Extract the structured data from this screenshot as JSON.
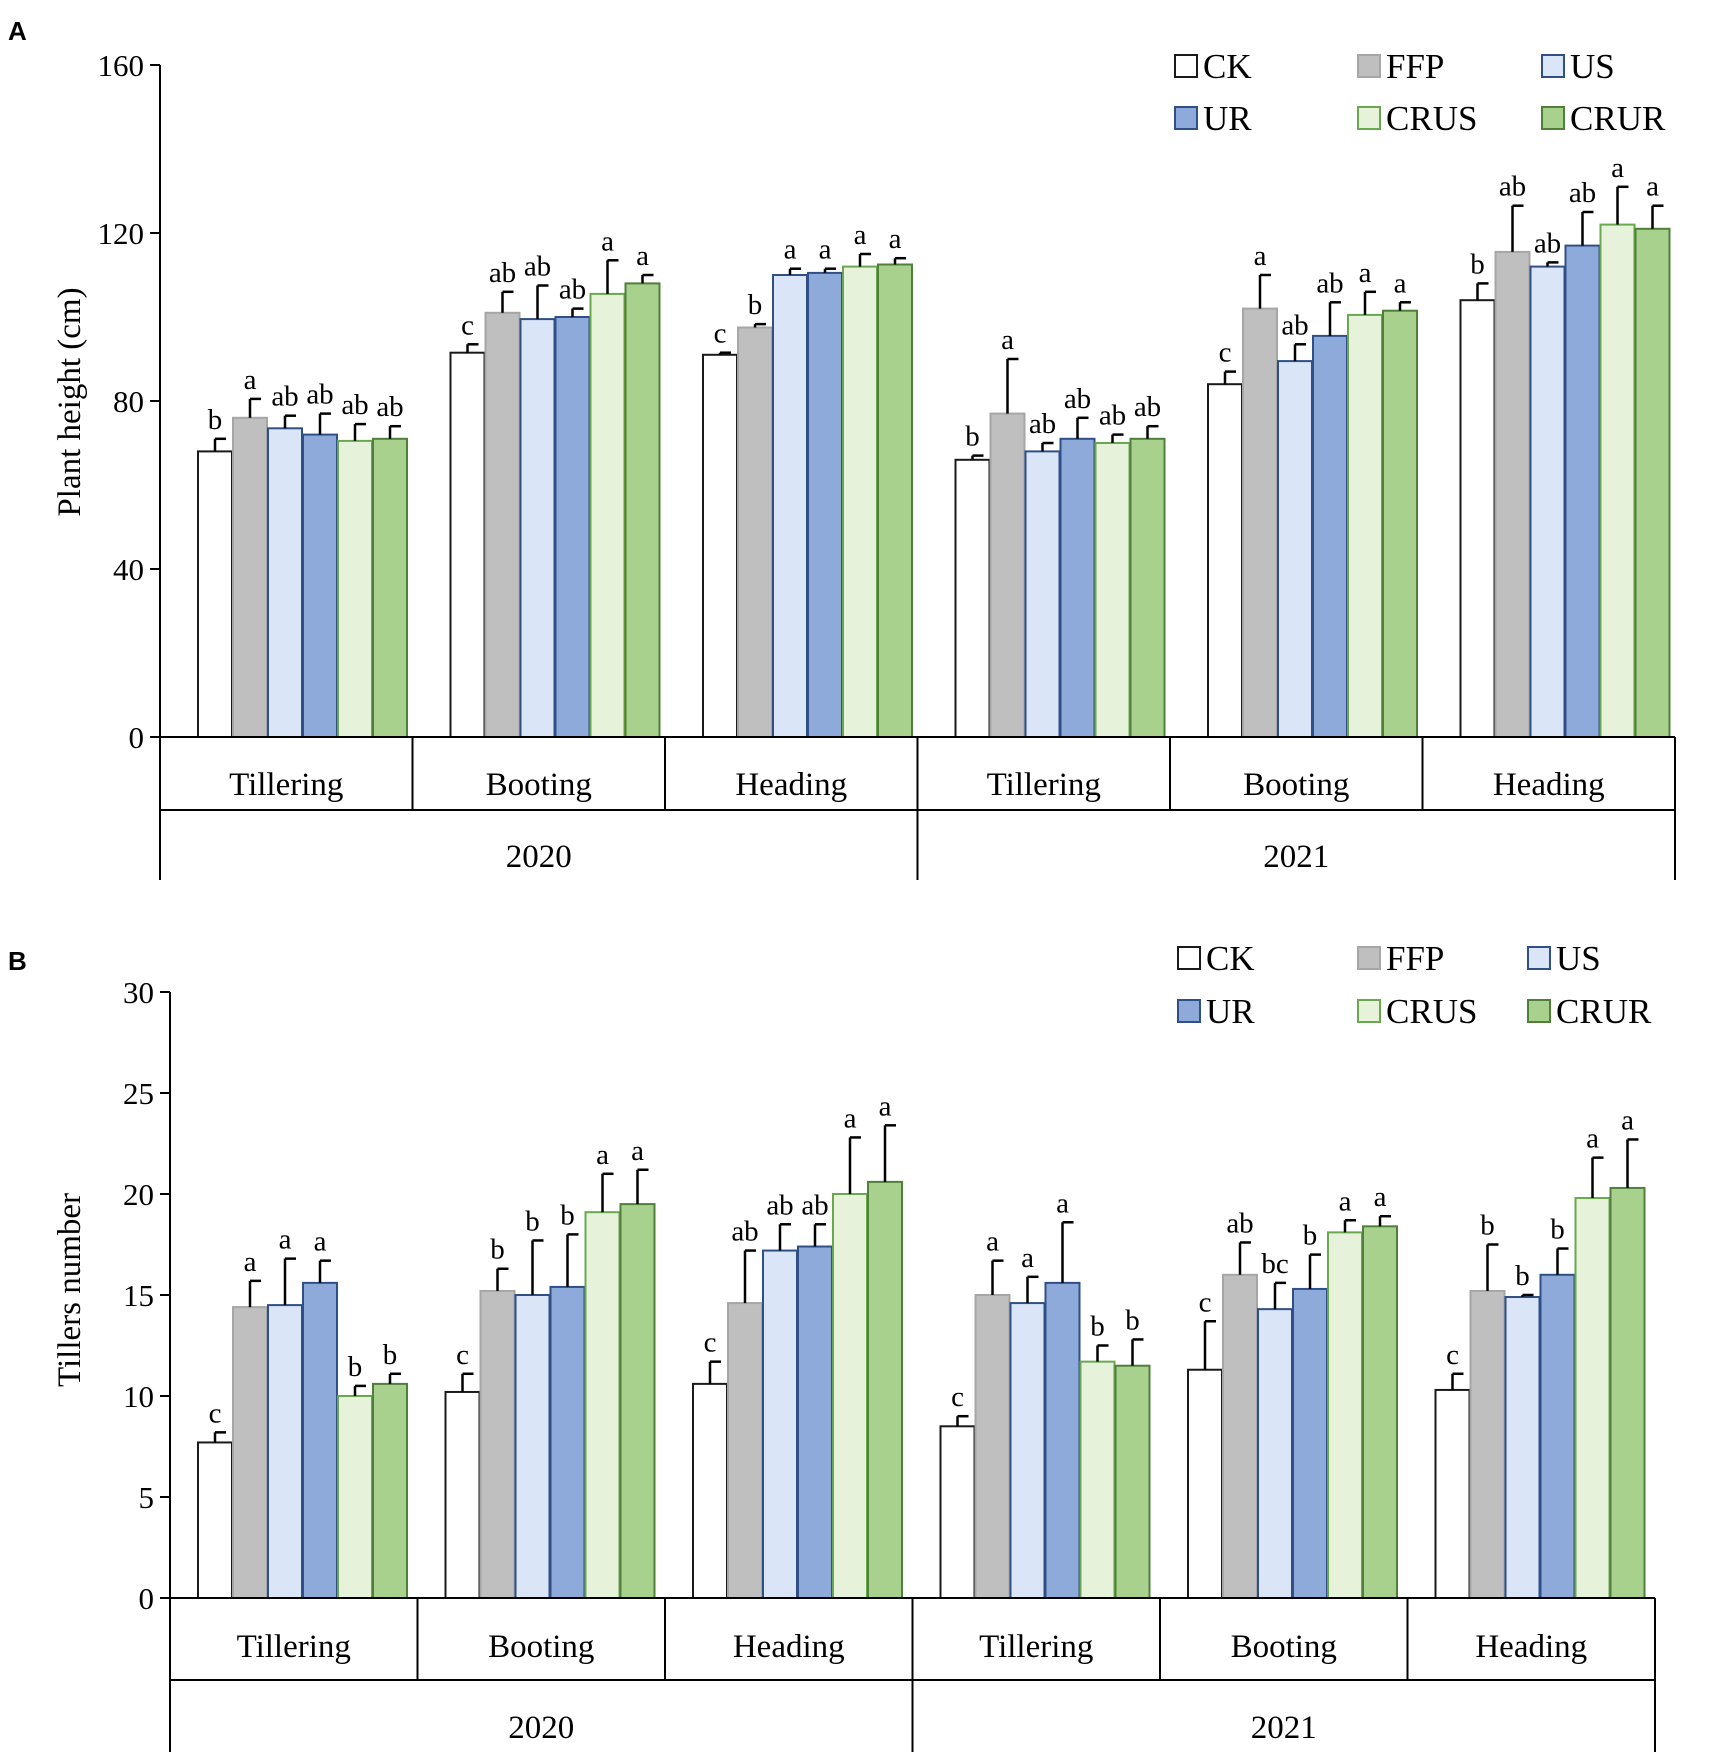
{
  "treatments": [
    "CK",
    "FFP",
    "US",
    "UR",
    "CRUS",
    "CRUR"
  ],
  "legend_order": [
    "CK",
    "FFP",
    "US",
    "UR",
    "CRUS",
    "CRUR"
  ],
  "colors": {
    "CK": {
      "fill": "#ffffff",
      "stroke": "#1a1a1a"
    },
    "FFP": {
      "fill": "#bfbfbf",
      "stroke": "#a6a6a6"
    },
    "US": {
      "fill": "#dae6f7",
      "stroke": "#2f4f86"
    },
    "UR": {
      "fill": "#8eaadb",
      "stroke": "#2f4f86"
    },
    "CRUS": {
      "fill": "#e6f2d9",
      "stroke": "#6aa84f"
    },
    "CRUR": {
      "fill": "#a9d18e",
      "stroke": "#4f7f3a"
    }
  },
  "chart_data": [
    {
      "panel": "A",
      "type": "bar",
      "ylabel": "Plant height (cm)",
      "xlabel": "",
      "ylim": [
        0,
        160
      ],
      "yticks": [
        0,
        40,
        80,
        120,
        160
      ],
      "legend_position": "top-right",
      "stages": [
        "Tillering",
        "Booting",
        "Heading",
        "Tillering",
        "Booting",
        "Heading"
      ],
      "years": [
        "2020",
        "2021"
      ],
      "series": [
        {
          "name": "CK",
          "values": [
            68,
            91.5,
            91,
            66,
            84,
            104
          ],
          "errors": [
            3,
            2,
            0.5,
            1,
            3,
            4
          ],
          "letters": [
            "b",
            "c",
            "c",
            "b",
            "c",
            "b"
          ]
        },
        {
          "name": "FFP",
          "values": [
            76,
            101,
            97.5,
            77,
            102,
            115.5
          ],
          "errors": [
            4.5,
            5,
            0.8,
            13,
            8,
            11
          ],
          "letters": [
            "a",
            "ab",
            "b",
            "a",
            "a",
            "ab"
          ]
        },
        {
          "name": "US",
          "values": [
            73.5,
            99.5,
            110,
            68,
            89.5,
            112
          ],
          "errors": [
            3,
            8,
            1.5,
            2,
            4,
            1
          ],
          "letters": [
            "ab",
            "ab",
            "a",
            "ab",
            "ab",
            "ab"
          ]
        },
        {
          "name": "UR",
          "values": [
            72,
            100,
            110.5,
            71,
            95.5,
            117
          ],
          "errors": [
            5,
            2,
            1,
            5,
            8,
            8
          ],
          "letters": [
            "ab",
            "ab",
            "a",
            "ab",
            "ab",
            "ab"
          ]
        },
        {
          "name": "CRUS",
          "values": [
            70.5,
            105.5,
            112,
            70,
            100.5,
            122
          ],
          "errors": [
            4,
            8,
            3,
            2,
            5.5,
            9
          ],
          "letters": [
            "ab",
            "a",
            "a",
            "ab",
            "a",
            "a"
          ]
        },
        {
          "name": "CRUR",
          "values": [
            71,
            108,
            112.5,
            71,
            101.5,
            121
          ],
          "errors": [
            3,
            2,
            1.5,
            3,
            2,
            5.5
          ],
          "letters": [
            "ab",
            "a",
            "a",
            "ab",
            "a",
            "a"
          ]
        }
      ]
    },
    {
      "panel": "B",
      "type": "bar",
      "ylabel": "Tillers number",
      "xlabel": "",
      "ylim": [
        0,
        30
      ],
      "yticks": [
        0,
        5,
        10,
        15,
        20,
        25,
        30
      ],
      "legend_position": "top-right",
      "stages": [
        "Tillering",
        "Booting",
        "Heading",
        "Tillering",
        "Booting",
        "Heading"
      ],
      "years": [
        "2020",
        "2021"
      ],
      "series": [
        {
          "name": "CK",
          "values": [
            7.7,
            10.2,
            10.6,
            8.5,
            11.3,
            10.3
          ],
          "errors": [
            0.5,
            0.9,
            1.1,
            0.5,
            2.4,
            0.8
          ],
          "letters": [
            "c",
            "c",
            "c",
            "c",
            "c",
            "c"
          ]
        },
        {
          "name": "FFP",
          "values": [
            14.4,
            15.2,
            14.6,
            15.0,
            16.0,
            15.2
          ],
          "errors": [
            1.3,
            1.1,
            2.6,
            1.7,
            1.6,
            2.3
          ],
          "letters": [
            "a",
            "b",
            "ab",
            "a",
            "ab",
            "b"
          ]
        },
        {
          "name": "US",
          "values": [
            14.5,
            15.0,
            17.2,
            14.6,
            14.3,
            14.9
          ],
          "errors": [
            2.3,
            2.7,
            1.3,
            1.3,
            1.3,
            0.1
          ],
          "letters": [
            "a",
            "b",
            "ab",
            "a",
            "bc",
            "b"
          ]
        },
        {
          "name": "UR",
          "values": [
            15.6,
            15.4,
            17.4,
            15.6,
            15.3,
            16.0
          ],
          "errors": [
            1.1,
            2.6,
            1.1,
            3.0,
            1.7,
            1.3
          ],
          "letters": [
            "a",
            "b",
            "ab",
            "a",
            "b",
            "b"
          ]
        },
        {
          "name": "CRUS",
          "values": [
            10.0,
            19.1,
            20.0,
            11.7,
            18.1,
            19.8
          ],
          "errors": [
            0.5,
            1.9,
            2.8,
            0.8,
            0.6,
            2.0
          ],
          "letters": [
            "b",
            "a",
            "a",
            "b",
            "a",
            "a"
          ]
        },
        {
          "name": "CRUR",
          "values": [
            10.6,
            19.5,
            20.6,
            11.5,
            18.4,
            20.3
          ],
          "errors": [
            0.5,
            1.7,
            2.8,
            1.3,
            0.5,
            2.4
          ],
          "letters": [
            "b",
            "a",
            "a",
            "b",
            "a",
            "a"
          ]
        }
      ]
    }
  ]
}
